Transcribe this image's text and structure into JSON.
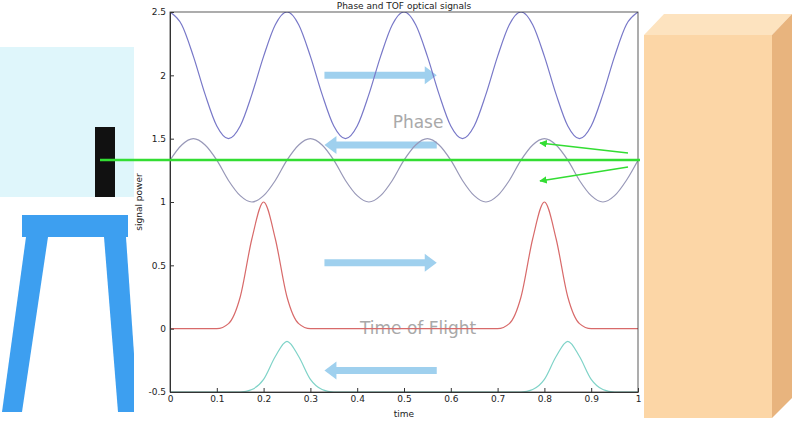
{
  "chart_data": {
    "type": "line",
    "title": "Phase and TOF optical signals",
    "x_label": "time",
    "y_label": "signal power",
    "xlim": [
      0,
      1
    ],
    "ylim": [
      -0.5,
      2.5
    ],
    "xticks": [
      0,
      0.1,
      0.2,
      0.3,
      0.4,
      0.5,
      0.6,
      0.7,
      0.8,
      0.9,
      1
    ],
    "yticks": [
      -0.5,
      0,
      0.5,
      1,
      1.5,
      2,
      2.5
    ],
    "grid": false,
    "annotations": [
      "Phase",
      "Time of Flight"
    ],
    "x": [
      0,
      0.025,
      0.05,
      0.075,
      0.1,
      0.125,
      0.15,
      0.175,
      0.2,
      0.225,
      0.25,
      0.275,
      0.3,
      0.325,
      0.35,
      0.375,
      0.4,
      0.425,
      0.45,
      0.475,
      0.5,
      0.525,
      0.55,
      0.575,
      0.6,
      0.625,
      0.65,
      0.675,
      0.7,
      0.725,
      0.75,
      0.775,
      0.8,
      0.825,
      0.85,
      0.875,
      0.9,
      0.925,
      0.95,
      0.975,
      1
    ],
    "series": [
      {
        "color": "#7878c8",
        "values": [
          2.5,
          2.4,
          2.15,
          1.85,
          1.6,
          1.5,
          1.6,
          1.85,
          2.15,
          2.4,
          2.5,
          2.4,
          2.15,
          1.85,
          1.6,
          1.5,
          1.6,
          1.85,
          2.15,
          2.4,
          2.5,
          2.4,
          2.15,
          1.85,
          1.6,
          1.5,
          1.6,
          1.85,
          2.15,
          2.4,
          2.5,
          2.4,
          2.15,
          1.85,
          1.6,
          1.5,
          1.6,
          1.85,
          2.15,
          2.4,
          2.5
        ]
      },
      {
        "color": "#9898b8",
        "values": [
          1.33,
          1.45,
          1.5,
          1.45,
          1.33,
          1.17,
          1.05,
          1,
          1.05,
          1.17,
          1.33,
          1.45,
          1.5,
          1.45,
          1.33,
          1.17,
          1.05,
          1,
          1.05,
          1.17,
          1.33,
          1.45,
          1.5,
          1.45,
          1.33,
          1.17,
          1.05,
          1,
          1.05,
          1.17,
          1.33,
          1.45,
          1.5,
          1.45,
          1.33,
          1.17,
          1.05,
          1,
          1.05,
          1.17,
          1.33
        ]
      },
      {
        "color": "#d86a6a",
        "values": [
          0,
          0,
          0,
          0,
          0,
          0.04,
          0.25,
          0.71,
          1,
          0.71,
          0.25,
          0.04,
          0,
          0,
          0,
          0,
          0,
          0,
          0,
          0,
          0,
          0,
          0,
          0,
          0,
          0,
          0,
          0,
          0,
          0.04,
          0.25,
          0.71,
          1,
          0.71,
          0.25,
          0.04,
          0,
          0,
          0,
          0,
          0
        ]
      },
      {
        "color": "#7fd3c8",
        "values": [
          -0.5,
          -0.5,
          -0.5,
          -0.5,
          -0.5,
          -0.5,
          -0.5,
          -0.48,
          -0.4,
          -0.22,
          -0.1,
          -0.22,
          -0.4,
          -0.48,
          -0.5,
          -0.5,
          -0.5,
          -0.5,
          -0.5,
          -0.5,
          -0.5,
          -0.5,
          -0.5,
          -0.5,
          -0.5,
          -0.5,
          -0.5,
          -0.5,
          -0.5,
          -0.5,
          -0.5,
          -0.48,
          -0.4,
          -0.22,
          -0.1,
          -0.22,
          -0.4,
          -0.48,
          -0.5,
          -0.5,
          -0.5
        ]
      }
    ]
  }
}
